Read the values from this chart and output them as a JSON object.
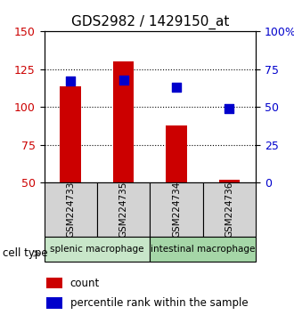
{
  "title": "GDS2982 / 1429150_at",
  "samples": [
    "GSM224733",
    "GSM224735",
    "GSM224734",
    "GSM224736"
  ],
  "groups": [
    {
      "label": "splenic macrophage",
      "samples": [
        "GSM224733",
        "GSM224735"
      ],
      "color": "#c8e6c9"
    },
    {
      "label": "intestinal macrophage",
      "samples": [
        "GSM224734",
        "GSM224736"
      ],
      "color": "#a5d6a7"
    }
  ],
  "count_values": [
    114,
    130,
    88,
    52
  ],
  "percentile_values": [
    67,
    68,
    63,
    49
  ],
  "count_baseline": 50,
  "left_ylim": [
    50,
    150
  ],
  "left_yticks": [
    50,
    75,
    100,
    125,
    150
  ],
  "right_ylim": [
    0,
    100
  ],
  "right_yticks": [
    0,
    25,
    50,
    75,
    100
  ],
  "right_yticklabels": [
    "0",
    "25",
    "50",
    "75",
    "100%"
  ],
  "bar_color": "#cc0000",
  "dot_color": "#0000cc",
  "bg_color": "#ffffff",
  "plot_bg_color": "#ffffff",
  "label_bg_color": "#d3d3d3",
  "grid_color": "#000000",
  "title_fontsize": 11,
  "tick_fontsize": 9,
  "legend_fontsize": 8.5,
  "cell_type_label": "cell type",
  "bar_width": 0.4,
  "dot_size": 60
}
